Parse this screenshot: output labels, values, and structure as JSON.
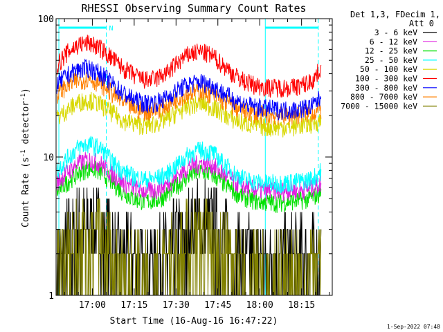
{
  "chart_data": {
    "type": "line",
    "title": "RHESSI Observing Summary Count Rates",
    "xlabel": "Start Time (16-Aug-16 16:47:22)",
    "ylabel_main": "Count Rate (s",
    "ylabel_sup1": "-1",
    "ylabel_mid": " detector",
    "ylabel_sup2": "-1",
    "ylabel_end": ")",
    "yscale": "log",
    "ylim": [
      1,
      100
    ],
    "xlim_minutes": [
      -13,
      86
    ],
    "x_ticks": [
      {
        "label": "17:00",
        "min": 0
      },
      {
        "label": "17:15",
        "min": 15
      },
      {
        "label": "17:30",
        "min": 30
      },
      {
        "label": "17:45",
        "min": 45
      },
      {
        "label": "18:00",
        "min": 60
      },
      {
        "label": "18:15",
        "min": 75
      }
    ],
    "y_ticks": [
      {
        "label": "1",
        "value": 1
      },
      {
        "label": "10",
        "value": 10
      },
      {
        "label": "100",
        "value": 100
      }
    ],
    "legend_header": [
      "Det 1,3, FDecim 1,",
      "Att 0"
    ],
    "series": [
      {
        "name": "3 - 6 keV",
        "color": "#000000",
        "x": [
          -13,
          -9,
          -5,
          -1,
          3,
          7,
          11,
          15,
          19,
          23,
          27,
          31,
          35,
          39,
          43,
          47,
          51,
          55,
          59,
          63,
          67,
          71,
          75,
          79,
          82
        ],
        "y": [
          1.8,
          2.5,
          3.2,
          3.6,
          3.3,
          2.6,
          2.1,
          1.9,
          1.8,
          1.9,
          2.2,
          2.8,
          3.4,
          3.7,
          3.4,
          2.8,
          2.3,
          2.0,
          1.9,
          1.9,
          2.0,
          2.1,
          2.2,
          2.3,
          2.5
        ]
      },
      {
        "name": "6 - 12 keV",
        "color": "#e020e0",
        "x": [
          -13,
          -9,
          -5,
          -1,
          3,
          7,
          11,
          15,
          19,
          23,
          27,
          31,
          35,
          39,
          43,
          47,
          51,
          55,
          59,
          63,
          67,
          71,
          75,
          79,
          82
        ],
        "y": [
          6.5,
          7.8,
          9.0,
          9.6,
          9.0,
          7.6,
          6.6,
          6.0,
          5.7,
          5.8,
          6.4,
          7.5,
          8.6,
          9.1,
          8.8,
          7.6,
          6.6,
          6.1,
          5.8,
          5.7,
          5.7,
          5.8,
          5.8,
          6.0,
          6.5
        ]
      },
      {
        "name": "12 - 25 keV",
        "color": "#00e000",
        "x": [
          -13,
          -9,
          -5,
          -1,
          3,
          7,
          11,
          15,
          19,
          23,
          27,
          31,
          35,
          39,
          43,
          47,
          51,
          55,
          59,
          63,
          67,
          71,
          75,
          79,
          82
        ],
        "y": [
          5.5,
          6.6,
          7.7,
          8.4,
          7.8,
          6.6,
          5.6,
          5.0,
          4.8,
          4.9,
          5.4,
          6.4,
          7.4,
          7.9,
          7.5,
          6.5,
          5.6,
          5.1,
          4.8,
          4.7,
          4.7,
          4.8,
          4.9,
          5.1,
          5.6
        ]
      },
      {
        "name": "25 - 50 keV",
        "color": "#00ffff",
        "x": [
          -13,
          -9,
          -5,
          -1,
          3,
          7,
          11,
          15,
          19,
          23,
          27,
          31,
          35,
          39,
          43,
          47,
          51,
          55,
          59,
          63,
          67,
          71,
          75,
          79,
          82
        ],
        "y": [
          7.8,
          9.8,
          11.8,
          12.5,
          11.5,
          9.3,
          7.9,
          7.2,
          6.9,
          7.0,
          7.6,
          9.0,
          10.6,
          11.3,
          10.8,
          9.0,
          7.6,
          6.9,
          6.6,
          6.5,
          6.5,
          6.6,
          6.7,
          7.0,
          8.0
        ]
      },
      {
        "name": "50 - 100 keV",
        "color": "#d8d800",
        "x": [
          -13,
          -9,
          -5,
          -1,
          3,
          7,
          11,
          15,
          19,
          23,
          27,
          31,
          35,
          39,
          43,
          47,
          51,
          55,
          59,
          63,
          67,
          71,
          75,
          79,
          82
        ],
        "y": [
          19,
          22,
          25,
          26,
          24,
          21,
          18.5,
          17.5,
          17,
          17.5,
          19,
          21.5,
          23.5,
          24.5,
          23,
          20.5,
          18.5,
          17.5,
          17,
          16.5,
          16.5,
          16.5,
          17,
          17.5,
          18.5
        ]
      },
      {
        "name": "100 - 300 keV",
        "color": "#ff0000",
        "x": [
          -13,
          -9,
          -5,
          -1,
          3,
          7,
          11,
          15,
          19,
          23,
          27,
          31,
          35,
          39,
          43,
          47,
          51,
          55,
          59,
          63,
          67,
          71,
          75,
          79,
          82
        ],
        "y": [
          45,
          57,
          65,
          67,
          61,
          52,
          44,
          39,
          36,
          37,
          41,
          49,
          56,
          58,
          54,
          46,
          39,
          35,
          33,
          32,
          32,
          32,
          33,
          36,
          44
        ]
      },
      {
        "name": "300 - 800 keV",
        "color": "#0000ff",
        "x": [
          -13,
          -9,
          -5,
          -1,
          3,
          7,
          11,
          15,
          19,
          23,
          27,
          31,
          35,
          39,
          43,
          47,
          51,
          55,
          59,
          63,
          67,
          71,
          75,
          79,
          82
        ],
        "y": [
          33,
          39,
          43,
          44,
          40,
          34,
          29,
          26,
          24.5,
          25,
          27,
          31,
          34,
          35,
          33,
          29,
          26,
          24,
          23,
          22.5,
          22,
          22,
          22.5,
          23.5,
          27
        ]
      },
      {
        "name": "800 - 7000 keV",
        "color": "#ff8000",
        "x": [
          -13,
          -9,
          -5,
          -1,
          3,
          7,
          11,
          15,
          19,
          23,
          27,
          31,
          35,
          39,
          43,
          47,
          51,
          55,
          59,
          63,
          67,
          71,
          75,
          79,
          82
        ],
        "y": [
          28,
          33,
          36,
          37,
          34,
          29,
          25,
          22.5,
          21.5,
          22,
          24,
          27,
          29.5,
          30,
          28.5,
          25.5,
          23,
          21.5,
          20.5,
          20,
          20,
          20,
          20.5,
          21,
          22
        ]
      },
      {
        "name": "7000 - 15000 keV",
        "color": "#808000",
        "x": [
          -13,
          -9,
          -5,
          -1,
          3,
          7,
          11,
          15,
          19,
          23,
          27,
          31,
          35,
          39,
          43,
          47,
          51,
          55,
          59,
          63,
          67,
          71,
          75,
          79,
          82
        ],
        "y": [
          1.6,
          2.2,
          2.7,
          3.0,
          2.7,
          2.1,
          1.7,
          1.5,
          1.4,
          1.5,
          1.8,
          2.2,
          2.7,
          2.9,
          2.6,
          2.1,
          1.7,
          1.5,
          1.4,
          1.4,
          1.5,
          1.5,
          1.6,
          1.7,
          1.9
        ]
      }
    ],
    "flag_marker": "N",
    "flag_color": "#00ffff",
    "flag_intervals_minutes": [
      [
        -12,
        5
      ],
      [
        62,
        81
      ]
    ],
    "grid": false,
    "legend_position": "right"
  },
  "footer": {
    "timestamp": "1-Sep-2022 07:48"
  }
}
